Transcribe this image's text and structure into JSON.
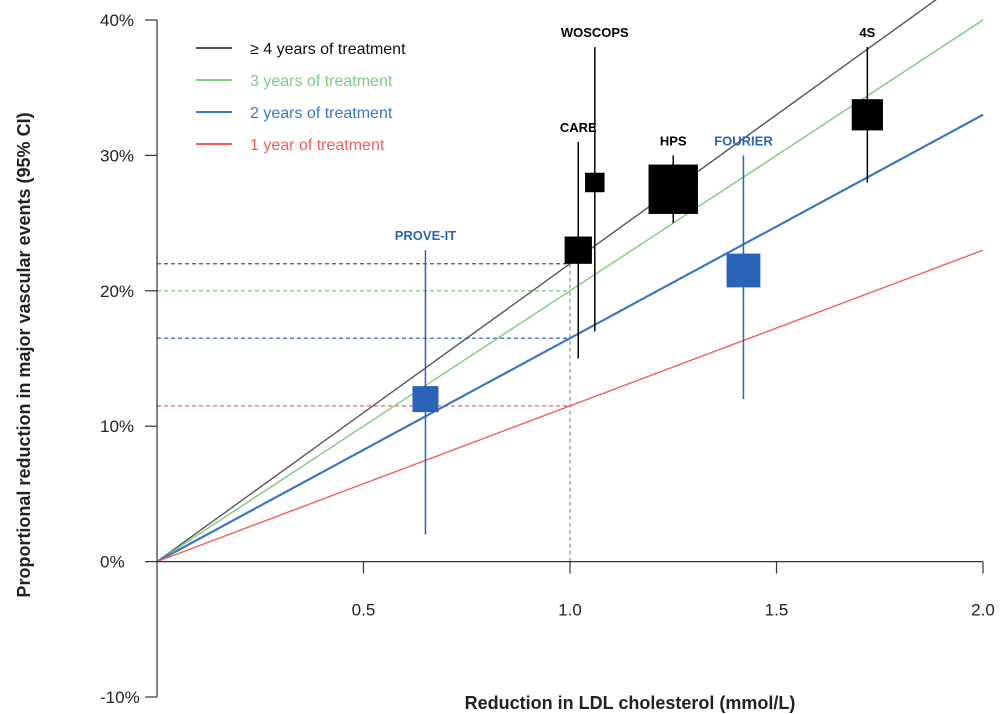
{
  "chart_data": {
    "type": "scatter",
    "title": "",
    "xlabel": "Reduction in LDL cholesterol (mmol/L)",
    "ylabel": "Proportional reduction in major vascular events (95% CI)",
    "xlim": [
      0,
      2.0
    ],
    "ylim": [
      -10,
      40
    ],
    "x_ticks": [
      {
        "value": 0.5,
        "label": "0.5"
      },
      {
        "value": 1.0,
        "label": "1.0"
      },
      {
        "value": 1.5,
        "label": "1.5"
      },
      {
        "value": 2.0,
        "label": "2.0"
      }
    ],
    "y_ticks": [
      {
        "value": 40,
        "label": "40%"
      },
      {
        "value": 30,
        "label": "30%"
      },
      {
        "value": 20,
        "label": "20%"
      },
      {
        "value": 10,
        "label": "10%"
      },
      {
        "value": 0,
        "label": "0%"
      },
      {
        "value": -10,
        "label": "-10%"
      }
    ],
    "grid": false,
    "legend_position": "top-left",
    "series": [
      {
        "name": "≥ 4 years of treatment",
        "color": "#555555",
        "slope": 22,
        "reference_y": 22
      },
      {
        "name": "3 years of treatment",
        "color": "#7fc97f",
        "slope": 20,
        "reference_y": 20
      },
      {
        "name": "2 years of treatment",
        "color": "#3a78c4",
        "slope": 16.5,
        "reference_y": 16.5
      },
      {
        "name": "1 year of treatment",
        "color": "#f0605a",
        "slope": 11.5,
        "reference_y": 11.5
      }
    ],
    "reference_x": 1.0,
    "trials": [
      {
        "label": "PROVE-IT",
        "x": 0.65,
        "y": 12,
        "ci": [
          2,
          23
        ],
        "size": 1.0,
        "color": "#2b63b8"
      },
      {
        "label": "CARE",
        "x": 1.02,
        "y": 23,
        "ci": [
          15,
          31
        ],
        "size": 1.05,
        "color": "#000000"
      },
      {
        "label": "WOSCOPS",
        "x": 1.06,
        "y": 28,
        "ci": [
          17,
          38
        ],
        "size": 0.75,
        "color": "#000000"
      },
      {
        "label": "HPS",
        "x": 1.25,
        "y": 27.5,
        "ci": [
          25,
          30
        ],
        "size": 1.9,
        "color": "#000000"
      },
      {
        "label": "FOURIER",
        "x": 1.42,
        "y": 21.5,
        "ci": [
          12,
          30
        ],
        "size": 1.3,
        "color": "#2b63b8"
      },
      {
        "label": "4S",
        "x": 1.72,
        "y": 33,
        "ci": [
          28,
          38
        ],
        "size": 1.2,
        "color": "#000000"
      }
    ]
  }
}
